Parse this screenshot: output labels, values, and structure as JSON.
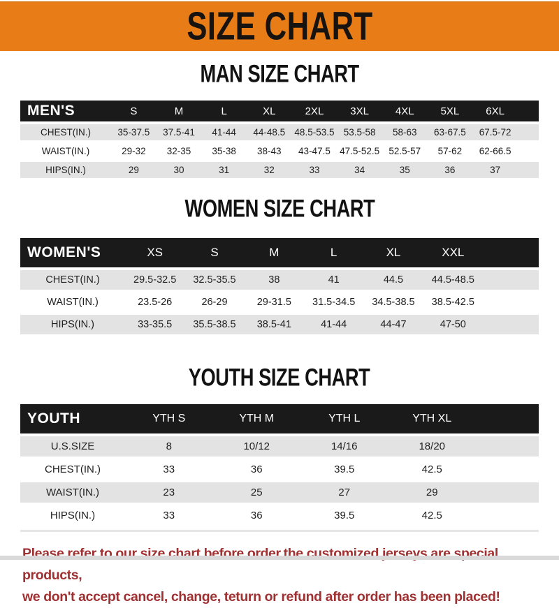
{
  "banner": {
    "title": "SIZE CHART"
  },
  "chart_data": [
    {
      "type": "table",
      "title": "MAN SIZE CHART",
      "corner_label": "MEN'S",
      "columns": [
        "S",
        "M",
        "L",
        "XL",
        "2XL",
        "3XL",
        "4XL",
        "5XL",
        "6XL"
      ],
      "rows": [
        {
          "label": "CHEST(IN.)",
          "values": [
            "35-37.5",
            "37.5-41",
            "41-44",
            "44-48.5",
            "48.5-53.5",
            "53.5-58",
            "58-63",
            "63-67.5",
            "67.5-72"
          ]
        },
        {
          "label": "WAIST(IN.)",
          "values": [
            "29-32",
            "32-35",
            "35-38",
            "38-43",
            "43-47.5",
            "47.5-52.5",
            "52.5-57",
            "57-62",
            "62-66.5"
          ]
        },
        {
          "label": "HIPS(IN.)",
          "values": [
            "29",
            "30",
            "31",
            "32",
            "33",
            "34",
            "35",
            "36",
            "37"
          ]
        }
      ]
    },
    {
      "type": "table",
      "title": "WOMEN SIZE CHART",
      "corner_label": "WOMEN'S",
      "columns": [
        "XS",
        "S",
        "M",
        "L",
        "XL",
        "XXL"
      ],
      "rows": [
        {
          "label": "CHEST(IN.)",
          "values": [
            "29.5-32.5",
            "32.5-35.5",
            "38",
            "41",
            "44.5",
            "44.5-48.5"
          ]
        },
        {
          "label": "WAIST(IN.)",
          "values": [
            "23.5-26",
            "26-29",
            "29-31.5",
            "31.5-34.5",
            "34.5-38.5",
            "38.5-42.5"
          ]
        },
        {
          "label": "HIPS(IN.)",
          "values": [
            "33-35.5",
            "35.5-38.5",
            "38.5-41",
            "41-44",
            "44-47",
            "47-50"
          ]
        }
      ]
    },
    {
      "type": "table",
      "title": "YOUTH SIZE CHART",
      "corner_label": "YOUTH",
      "columns": [
        "YTH S",
        "YTH M",
        "YTH L",
        "YTH XL"
      ],
      "rows": [
        {
          "label": "U.S.SIZE",
          "values": [
            "8",
            "10/12",
            "14/16",
            "18/20"
          ]
        },
        {
          "label": "CHEST(IN.)",
          "values": [
            "33",
            "36",
            "39.5",
            "42.5"
          ]
        },
        {
          "label": "WAIST(IN.)",
          "values": [
            "23",
            "25",
            "27",
            "29"
          ]
        },
        {
          "label": "HIPS(IN.)",
          "values": [
            "33",
            "36",
            "39.5",
            "42.5"
          ]
        }
      ]
    }
  ],
  "footer": {
    "line1": "Please refer to our size chart before order,the customized jerseys are special products,",
    "line2": "we don't accept cancel, change, teturn or refund after order has been placed!"
  },
  "colors": {
    "banner_bg": "#E87D17",
    "bar_bg": "#1A1A1A",
    "row_gray": "#E3E3E3",
    "footer_red": "#A03132"
  }
}
